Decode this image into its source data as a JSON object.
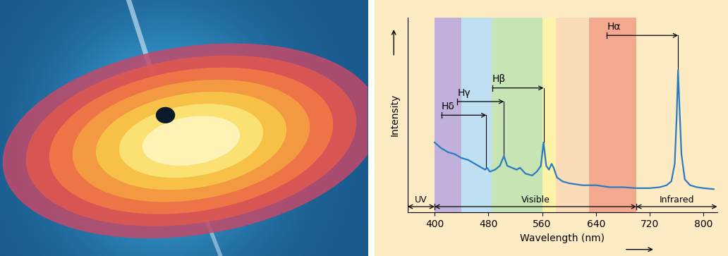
{
  "chart_data": {
    "type": "line",
    "x_label": "Wavelength (nm)",
    "y_label": "Intensity",
    "x": [
      400,
      410,
      420,
      430,
      440,
      450,
      460,
      470,
      475,
      478,
      482,
      490,
      497,
      503,
      508,
      515,
      522,
      527,
      535,
      545,
      552,
      558,
      562,
      566,
      570,
      574,
      577,
      582,
      590,
      600,
      620,
      640,
      660,
      680,
      700,
      720,
      735,
      745,
      752,
      757,
      760,
      762,
      764,
      767,
      772,
      780,
      790,
      800,
      815
    ],
    "values": [
      36,
      33,
      31,
      30,
      28,
      27,
      25,
      23,
      22,
      23,
      21,
      22,
      24,
      29,
      24,
      23,
      22,
      23,
      20,
      19,
      21,
      24,
      36,
      24,
      22,
      25,
      23,
      18,
      16,
      15,
      14,
      14,
      13,
      13,
      12.5,
      12.5,
      13,
      14,
      16,
      25,
      50,
      73,
      55,
      30,
      17,
      14,
      13,
      12.5,
      12
    ],
    "color": "#2b7bc0",
    "xlim": [
      360,
      820
    ],
    "xticks": [
      400,
      480,
      560,
      640,
      720,
      800
    ],
    "ylim": [
      0,
      100
    ],
    "tick_labels": "x",
    "bands": [
      {
        "start": 400,
        "end": 440,
        "color": "#c2b0dc"
      },
      {
        "start": 440,
        "end": 485,
        "color": "#bfe0f2"
      },
      {
        "start": 485,
        "end": 560,
        "color": "#c6e4b4"
      },
      {
        "start": 560,
        "end": 580,
        "color": "#fdf3a8"
      },
      {
        "start": 580,
        "end": 630,
        "color": "#fbdcb8"
      },
      {
        "start": 630,
        "end": 700,
        "color": "#f4a98f"
      }
    ],
    "regions": [
      {
        "label": "UV",
        "start": 360,
        "end": 400
      },
      {
        "label": "Visible",
        "start": 400,
        "end": 700
      },
      {
        "label": "Infrared",
        "start": 700,
        "end": 820
      }
    ],
    "lines": [
      {
        "label": "Hδ",
        "rest": 410,
        "observed": 477
      },
      {
        "label": "Hγ",
        "rest": 434,
        "observed": 503
      },
      {
        "label": "Hβ",
        "rest": 486,
        "observed": 562
      },
      {
        "label": "Hα",
        "rest": 656,
        "observed": 762
      }
    ]
  }
}
